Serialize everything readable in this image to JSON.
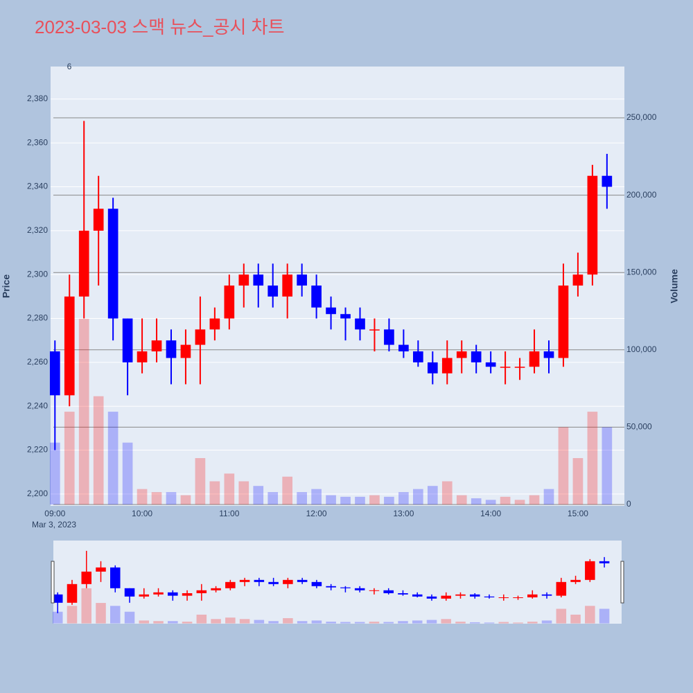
{
  "chart_data": {
    "type": "candlestick",
    "title": "2023-03-03 스맥 뉴스_공시 차트",
    "y_label": "Price",
    "y2_label": "Volume",
    "x_date_label": "Mar 3, 2023",
    "annotation": "6",
    "increasing_color": "#ff0000",
    "decreasing_color": "#0000ff",
    "x": [
      "09:00",
      "09:10",
      "09:20",
      "09:30",
      "09:40",
      "09:50",
      "10:00",
      "10:10",
      "10:20",
      "10:30",
      "10:40",
      "10:50",
      "11:00",
      "11:10",
      "11:20",
      "11:30",
      "11:40",
      "11:50",
      "12:00",
      "12:10",
      "12:20",
      "12:30",
      "12:40",
      "12:50",
      "13:00",
      "13:10",
      "13:20",
      "13:30",
      "13:40",
      "13:50",
      "14:00",
      "14:10",
      "14:20",
      "14:30",
      "14:40",
      "14:50",
      "15:00",
      "15:10",
      "15:20"
    ],
    "open": [
      2265,
      2245,
      2290,
      2320,
      2330,
      2280,
      2260,
      2265,
      2270,
      2262,
      2268,
      2275,
      2280,
      2295,
      2300,
      2295,
      2290,
      2300,
      2295,
      2285,
      2282,
      2280,
      2275,
      2275,
      2268,
      2265,
      2260,
      2255,
      2262,
      2265,
      2260,
      2258,
      2258,
      2258,
      2265,
      2262,
      2295,
      2300,
      2345
    ],
    "high": [
      2270,
      2300,
      2370,
      2345,
      2335,
      2280,
      2280,
      2280,
      2275,
      2275,
      2290,
      2285,
      2300,
      2305,
      2305,
      2305,
      2305,
      2305,
      2300,
      2290,
      2285,
      2285,
      2280,
      2280,
      2275,
      2270,
      2265,
      2270,
      2270,
      2268,
      2265,
      2265,
      2262,
      2275,
      2270,
      2305,
      2310,
      2350,
      2355
    ],
    "low": [
      2220,
      2240,
      2280,
      2295,
      2270,
      2245,
      2255,
      2260,
      2250,
      2250,
      2250,
      2270,
      2275,
      2285,
      2285,
      2285,
      2280,
      2290,
      2280,
      2275,
      2270,
      2270,
      2265,
      2265,
      2262,
      2258,
      2250,
      2250,
      2255,
      2255,
      2255,
      2250,
      2252,
      2255,
      2255,
      2258,
      2290,
      2295,
      2330
    ],
    "close": [
      2245,
      2290,
      2320,
      2330,
      2280,
      2260,
      2265,
      2270,
      2262,
      2268,
      2275,
      2280,
      2295,
      2300,
      2295,
      2290,
      2300,
      2295,
      2285,
      2282,
      2280,
      2275,
      2275,
      2268,
      2265,
      2260,
      2255,
      2262,
      2265,
      2260,
      2258,
      2258,
      2258,
      2265,
      2262,
      2295,
      2300,
      2345,
      2340
    ],
    "volume": [
      40000,
      60000,
      120000,
      70000,
      60000,
      40000,
      10000,
      8000,
      8000,
      6000,
      30000,
      15000,
      20000,
      15000,
      12000,
      8000,
      18000,
      8000,
      10000,
      6000,
      5000,
      5000,
      6000,
      5000,
      8000,
      10000,
      12000,
      15000,
      6000,
      4000,
      3000,
      5000,
      3000,
      6000,
      10000,
      50000,
      30000,
      60000,
      50000
    ],
    "xlim": [
      "08:57",
      "15:32"
    ],
    "xticks": [
      "09:00",
      "10:00",
      "11:00",
      "12:00",
      "13:00",
      "14:00",
      "15:00"
    ],
    "ylim": [
      2194.6,
      2394.8
    ],
    "yticks": [
      {
        "value": 2200,
        "label": "2,200"
      },
      {
        "value": 2220,
        "label": "2,220"
      },
      {
        "value": 2240,
        "label": "2,240"
      },
      {
        "value": 2260,
        "label": "2,260"
      },
      {
        "value": 2280,
        "label": "2,280"
      },
      {
        "value": 2300,
        "label": "2,300"
      },
      {
        "value": 2320,
        "label": "2,320"
      },
      {
        "value": 2340,
        "label": "2,340"
      },
      {
        "value": 2360,
        "label": "2,360"
      },
      {
        "value": 2380,
        "label": "2,380"
      }
    ],
    "y2lim": [
      -900,
      283150
    ],
    "y2ticks": [
      0,
      {
        "value": 50000,
        "label": "50,000"
      },
      {
        "value": 100000,
        "label": "100,000"
      },
      {
        "value": 150000,
        "label": "150,000"
      },
      {
        "value": 200000,
        "label": "200,000"
      },
      {
        "value": 250000,
        "label": "250,000"
      }
    ],
    "grid": true,
    "range_slider": true
  }
}
